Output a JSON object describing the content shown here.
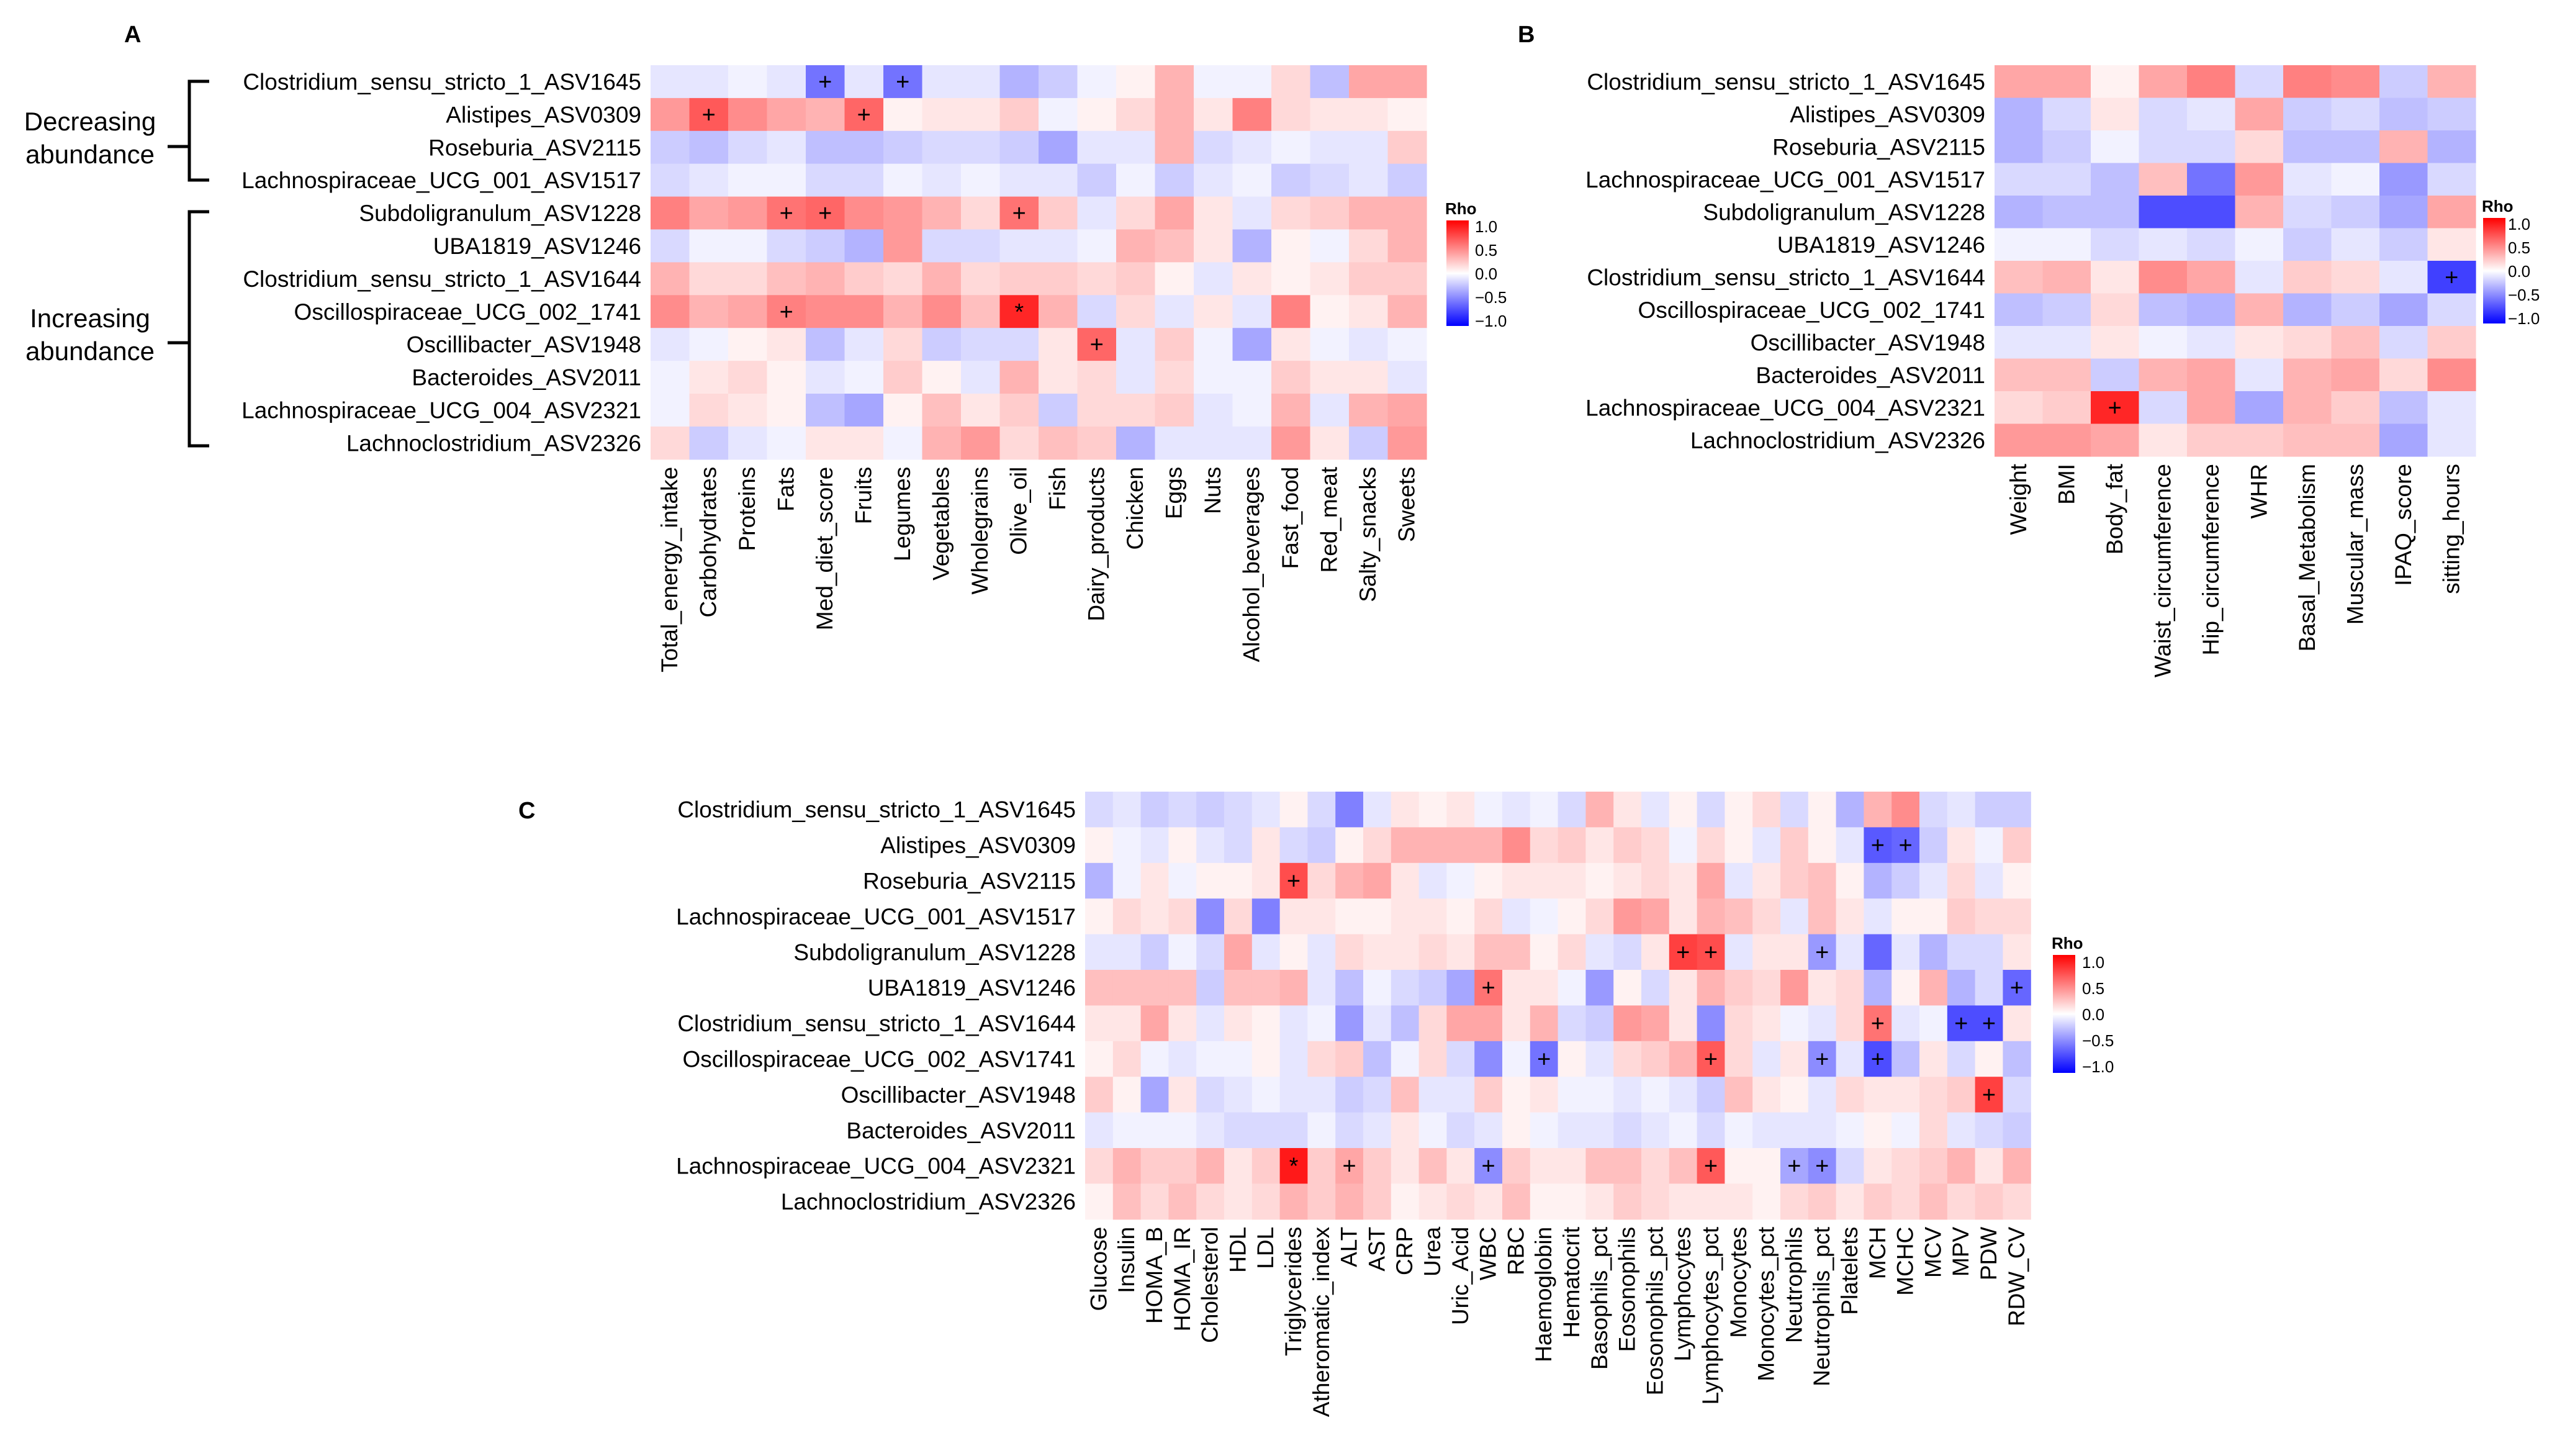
{
  "panels": {
    "A": {
      "letter": "A"
    },
    "B": {
      "letter": "B"
    },
    "C": {
      "letter": "C"
    }
  },
  "groups": {
    "decreasing": [
      "Decreasing",
      "abundance"
    ],
    "increasing": [
      "Increasing",
      "abundance"
    ]
  },
  "legend": {
    "title": "Rho",
    "ticks": [
      "1.0",
      "0.5",
      "0.0",
      "−0.5",
      "−1.0"
    ],
    "colors": {
      "high": "#ff0000",
      "mid": "#ffffff",
      "low": "#0000ff"
    }
  },
  "chart_data": [
    {
      "type": "heatmap",
      "panel": "A",
      "title": "",
      "value_range": [
        -1,
        1
      ],
      "rows": [
        "Clostridium_sensu_stricto_1_ASV1645",
        "Alistipes_ASV0309",
        "Roseburia_ASV2115",
        "Lachnospiraceae_UCG_001_ASV1517",
        "Subdoligranulum_ASV1228",
        "UBA1819_ASV1246",
        "Clostridium_sensu_stricto_1_ASV1644",
        "Oscillospiraceae_UCG_002_1741",
        "Oscillibacter_ASV1948",
        "Bacteroides_ASV2011",
        "Lachnospiraceae_UCG_004_ASV2321",
        "Lachnoclostridium_ASV2326"
      ],
      "columns": [
        "Total_energy_intake",
        "Carbohydrates",
        "Proteins",
        "Fats",
        "Med_diet_score",
        "Fruits",
        "Legumes",
        "Vegetables",
        "Wholegrains",
        "Olive_oil",
        "Fish",
        "Dairy_products",
        "Chicken",
        "Eggs",
        "Nuts",
        "Alcohol_beverages",
        "Fast_food",
        "Red_meat",
        "Salty_snacks",
        "Sweets"
      ],
      "values": [
        [
          -0.1,
          -0.1,
          -0.05,
          -0.1,
          -0.55,
          -0.1,
          -0.55,
          -0.1,
          -0.1,
          -0.3,
          -0.2,
          -0.05,
          0.05,
          0.3,
          -0.05,
          -0.05,
          0.15,
          -0.25,
          0.35,
          0.35
        ],
        [
          0.4,
          0.65,
          0.45,
          0.35,
          0.3,
          0.6,
          0.05,
          0.1,
          0.1,
          0.2,
          -0.05,
          0.05,
          0.15,
          0.3,
          0.1,
          0.5,
          0.15,
          0.1,
          0.1,
          0.05
        ],
        [
          -0.2,
          -0.25,
          -0.15,
          -0.1,
          -0.25,
          -0.25,
          -0.2,
          -0.15,
          -0.15,
          -0.2,
          -0.35,
          -0.1,
          -0.1,
          0.3,
          -0.15,
          -0.1,
          -0.05,
          -0.1,
          -0.1,
          0.2
        ],
        [
          -0.15,
          -0.1,
          -0.05,
          -0.05,
          -0.15,
          -0.15,
          -0.05,
          -0.1,
          -0.05,
          -0.1,
          -0.1,
          -0.2,
          -0.05,
          -0.2,
          -0.1,
          -0.05,
          -0.2,
          -0.15,
          -0.1,
          -0.2
        ],
        [
          0.5,
          0.35,
          0.4,
          0.55,
          0.6,
          0.45,
          0.4,
          0.3,
          0.15,
          0.55,
          0.2,
          -0.1,
          0.15,
          0.35,
          0.1,
          -0.1,
          0.15,
          0.2,
          0.3,
          0.3
        ],
        [
          -0.15,
          -0.05,
          -0.05,
          -0.15,
          -0.2,
          -0.3,
          0.4,
          -0.15,
          -0.15,
          -0.1,
          -0.1,
          -0.05,
          0.3,
          0.25,
          0.1,
          -0.3,
          0.05,
          -0.05,
          0.15,
          0.3
        ],
        [
          0.3,
          0.15,
          0.15,
          0.25,
          0.3,
          0.2,
          0.15,
          0.3,
          0.15,
          0.2,
          0.2,
          0.15,
          0.2,
          0.05,
          -0.1,
          0.1,
          0.05,
          0.1,
          0.2,
          0.2
        ],
        [
          0.45,
          0.3,
          0.35,
          0.5,
          0.45,
          0.45,
          0.3,
          0.45,
          0.25,
          0.85,
          0.3,
          -0.15,
          0.15,
          -0.1,
          0.1,
          -0.1,
          0.5,
          0.05,
          0.1,
          0.3
        ],
        [
          -0.1,
          -0.05,
          0.05,
          0.1,
          -0.25,
          -0.1,
          0.15,
          -0.2,
          -0.15,
          -0.15,
          0.1,
          0.6,
          -0.1,
          0.2,
          -0.05,
          -0.35,
          0.1,
          -0.05,
          -0.1,
          -0.05
        ],
        [
          -0.05,
          0.1,
          0.15,
          0.05,
          -0.1,
          -0.05,
          0.2,
          0.05,
          -0.1,
          0.3,
          0.1,
          0.15,
          -0.1,
          0.15,
          -0.05,
          -0.05,
          0.2,
          0.1,
          0.1,
          -0.1
        ],
        [
          -0.05,
          0.15,
          0.1,
          0.05,
          -0.25,
          -0.35,
          0.05,
          0.25,
          0.1,
          0.2,
          -0.2,
          0.15,
          0.15,
          0.2,
          -0.1,
          -0.05,
          0.3,
          -0.1,
          0.3,
          0.35
        ],
        [
          0.15,
          -0.2,
          -0.1,
          -0.05,
          0.1,
          0.1,
          -0.05,
          0.3,
          0.4,
          0.15,
          0.25,
          0.2,
          -0.3,
          -0.1,
          -0.1,
          -0.1,
          0.4,
          0.1,
          -0.2,
          0.4
        ]
      ],
      "marks": [
        {
          "row": 0,
          "col": 4,
          "symbol": "+"
        },
        {
          "row": 0,
          "col": 6,
          "symbol": "+"
        },
        {
          "row": 1,
          "col": 1,
          "symbol": "+"
        },
        {
          "row": 1,
          "col": 5,
          "symbol": "+"
        },
        {
          "row": 4,
          "col": 3,
          "symbol": "+"
        },
        {
          "row": 4,
          "col": 4,
          "symbol": "+"
        },
        {
          "row": 4,
          "col": 9,
          "symbol": "+"
        },
        {
          "row": 7,
          "col": 3,
          "symbol": "+"
        },
        {
          "row": 7,
          "col": 9,
          "symbol": "*"
        },
        {
          "row": 8,
          "col": 11,
          "symbol": "+"
        }
      ]
    },
    {
      "type": "heatmap",
      "panel": "B",
      "title": "",
      "value_range": [
        -1,
        1
      ],
      "rows": [
        "Clostridium_sensu_stricto_1_ASV1645",
        "Alistipes_ASV0309",
        "Roseburia_ASV2115",
        "Lachnospiraceae_UCG_001_ASV1517",
        "Subdoligranulum_ASV1228",
        "UBA1819_ASV1246",
        "Clostridium_sensu_stricto_1_ASV1644",
        "Oscillospiraceae_UCG_002_1741",
        "Oscillibacter_ASV1948",
        "Bacteroides_ASV2011",
        "Lachnospiraceae_UCG_004_ASV2321",
        "Lachnoclostridium_ASV2326"
      ],
      "columns": [
        "Weight",
        "BMI",
        "Body_fat",
        "Waist_circumference",
        "Hip_circumference",
        "WHR",
        "Basal_Metabolism",
        "Muscular_mass",
        "IPAQ_score",
        "sitting_hours"
      ],
      "values": [
        [
          0.35,
          0.35,
          0.05,
          0.35,
          0.5,
          -0.15,
          0.5,
          0.45,
          -0.2,
          0.3
        ],
        [
          -0.3,
          -0.15,
          0.1,
          -0.15,
          -0.1,
          0.35,
          -0.2,
          -0.15,
          -0.25,
          -0.2
        ],
        [
          -0.3,
          -0.2,
          -0.05,
          -0.15,
          -0.15,
          0.15,
          -0.25,
          -0.25,
          0.3,
          -0.3
        ],
        [
          -0.15,
          -0.15,
          -0.25,
          0.25,
          -0.55,
          0.4,
          -0.1,
          -0.05,
          -0.4,
          -0.15
        ],
        [
          -0.3,
          -0.25,
          -0.25,
          -0.7,
          -0.7,
          0.3,
          -0.15,
          -0.2,
          -0.35,
          0.35
        ],
        [
          -0.05,
          -0.05,
          -0.15,
          -0.1,
          -0.15,
          -0.05,
          -0.2,
          -0.1,
          -0.2,
          0.1
        ],
        [
          0.25,
          0.3,
          0.1,
          0.45,
          0.35,
          -0.1,
          0.2,
          0.15,
          -0.1,
          -0.75
        ],
        [
          -0.25,
          -0.2,
          0.15,
          -0.25,
          -0.3,
          0.3,
          -0.3,
          -0.2,
          -0.35,
          -0.15
        ],
        [
          -0.1,
          -0.1,
          0.1,
          -0.05,
          -0.1,
          0.1,
          0.15,
          0.25,
          -0.15,
          0.2
        ],
        [
          0.25,
          0.25,
          -0.2,
          0.3,
          0.35,
          -0.1,
          0.3,
          0.35,
          0.15,
          0.45
        ],
        [
          0.15,
          0.2,
          0.85,
          -0.15,
          0.35,
          -0.35,
          0.3,
          0.2,
          -0.25,
          -0.1
        ],
        [
          0.4,
          0.4,
          0.35,
          0.1,
          0.2,
          0.2,
          0.25,
          0.25,
          -0.35,
          -0.1
        ]
      ],
      "marks": [
        {
          "row": 6,
          "col": 9,
          "symbol": "+"
        },
        {
          "row": 10,
          "col": 2,
          "symbol": "+"
        }
      ]
    },
    {
      "type": "heatmap",
      "panel": "C",
      "title": "",
      "value_range": [
        -1,
        1
      ],
      "rows": [
        "Clostridium_sensu_stricto_1_ASV1645",
        "Alistipes_ASV0309",
        "Roseburia_ASV2115",
        "Lachnospiraceae_UCG_001_ASV1517",
        "Subdoligranulum_ASV1228",
        "UBA1819_ASV1246",
        "Clostridium_sensu_stricto_1_ASV1644",
        "Oscillospiraceae_UCG_002_ASV1741",
        "Oscillibacter_ASV1948",
        "Bacteroides_ASV2011",
        "Lachnospiraceae_UCG_004_ASV2321",
        "Lachnoclostridium_ASV2326"
      ],
      "columns": [
        "Glucose",
        "Insulin",
        "HOMA_B",
        "HOMA_IR",
        "Cholesterol",
        "HDL",
        "LDL",
        "Triglycerides",
        "Atheromatic_index",
        "ALT",
        "AST",
        "CRP",
        "Urea",
        "Uric_Acid",
        "WBC",
        "RBC",
        "Haemoglobin",
        "Hematocrit",
        "Basophils_pct",
        "Eosonophils",
        "Eosonophils_pct",
        "Lymphocytes",
        "Lymphocytes_pct",
        "Monocytes",
        "Monocytes_pct",
        "Neutrophils",
        "Neutrophils_pct",
        "Platelets",
        "MCH",
        "MCHC",
        "MCV",
        "MPV",
        "PDW",
        "RDW_CV"
      ],
      "values": [
        [
          -0.15,
          -0.1,
          -0.2,
          -0.15,
          -0.2,
          -0.15,
          -0.1,
          0.05,
          -0.15,
          -0.5,
          -0.1,
          0.1,
          0.05,
          0.1,
          -0.05,
          -0.1,
          -0.05,
          -0.15,
          0.3,
          0.1,
          -0.1,
          0.05,
          -0.15,
          0.05,
          0.15,
          -0.15,
          0.05,
          -0.3,
          0.3,
          0.45,
          -0.15,
          -0.1,
          -0.2,
          -0.2
        ],
        [
          0.05,
          -0.05,
          -0.1,
          0.05,
          -0.1,
          -0.15,
          0.1,
          -0.15,
          -0.2,
          0.05,
          0.15,
          0.3,
          0.3,
          0.3,
          0.3,
          0.45,
          0.15,
          0.2,
          0.1,
          0.2,
          0.15,
          -0.05,
          0.15,
          0.05,
          -0.1,
          0.2,
          0.05,
          -0.1,
          -0.65,
          -0.6,
          -0.2,
          0.1,
          -0.05,
          0.2
        ],
        [
          -0.3,
          -0.05,
          0.1,
          -0.05,
          0.05,
          0.05,
          0.1,
          0.7,
          0.15,
          0.3,
          0.35,
          0.1,
          -0.1,
          -0.05,
          0.05,
          0.1,
          0.1,
          0.1,
          0.05,
          0.1,
          0.15,
          0.1,
          0.35,
          -0.1,
          0.1,
          0.2,
          0.25,
          0.05,
          -0.3,
          -0.2,
          -0.1,
          0.15,
          -0.1,
          0.05
        ],
        [
          0.05,
          0.15,
          0.1,
          0.15,
          -0.45,
          0.15,
          -0.5,
          0.1,
          0.1,
          0.05,
          0.05,
          0.1,
          0.1,
          0.05,
          0.15,
          -0.1,
          -0.05,
          0.05,
          0.15,
          0.4,
          0.35,
          0.1,
          0.3,
          0.25,
          0.15,
          -0.1,
          0.25,
          0.1,
          -0.1,
          0.05,
          0.05,
          0.2,
          0.15,
          0.15
        ],
        [
          -0.1,
          -0.1,
          -0.2,
          -0.05,
          -0.15,
          0.35,
          -0.1,
          0.05,
          -0.1,
          0.15,
          0.1,
          0.1,
          0.15,
          0.1,
          0.25,
          0.25,
          0.05,
          0.15,
          -0.1,
          -0.15,
          0.1,
          0.75,
          0.7,
          -0.1,
          0.1,
          0.1,
          -0.4,
          -0.1,
          -0.6,
          -0.1,
          -0.3,
          -0.15,
          -0.15,
          0.1
        ],
        [
          0.25,
          0.25,
          0.25,
          0.25,
          -0.2,
          0.25,
          0.25,
          0.3,
          -0.1,
          -0.25,
          -0.05,
          -0.15,
          -0.2,
          -0.35,
          0.55,
          0.1,
          0.1,
          -0.05,
          -0.4,
          0.05,
          -0.15,
          0.1,
          0.3,
          0.2,
          0.15,
          0.4,
          0.1,
          0.15,
          -0.3,
          0.05,
          0.3,
          -0.3,
          -0.15,
          -0.6
        ],
        [
          0.1,
          0.1,
          0.35,
          0.1,
          -0.1,
          0.1,
          0.05,
          -0.1,
          -0.05,
          -0.4,
          -0.1,
          -0.25,
          0.15,
          0.35,
          0.35,
          0.1,
          0.3,
          -0.15,
          -0.2,
          0.4,
          0.35,
          0.1,
          -0.45,
          0.15,
          0.1,
          -0.05,
          -0.1,
          0.15,
          0.55,
          -0.1,
          -0.05,
          -0.7,
          -0.7,
          0.1
        ],
        [
          0.05,
          0.15,
          -0.05,
          -0.1,
          -0.05,
          -0.05,
          0.05,
          -0.1,
          0.15,
          0.2,
          -0.25,
          -0.05,
          0.15,
          -0.15,
          -0.45,
          -0.05,
          -0.55,
          0.05,
          -0.1,
          0.15,
          0.2,
          0.3,
          0.65,
          0.15,
          -0.1,
          0.1,
          -0.45,
          -0.1,
          -0.7,
          -0.25,
          0.1,
          -0.15,
          0.05,
          -0.25
        ],
        [
          0.2,
          0.05,
          -0.35,
          0.1,
          -0.15,
          -0.1,
          -0.05,
          -0.1,
          -0.1,
          -0.2,
          -0.15,
          0.25,
          -0.1,
          -0.1,
          0.2,
          0.05,
          0.1,
          -0.05,
          -0.05,
          -0.1,
          -0.05,
          -0.1,
          -0.2,
          0.25,
          0.1,
          0.05,
          -0.1,
          0.15,
          0.1,
          0.1,
          0.15,
          0.2,
          0.75,
          -0.15
        ],
        [
          -0.1,
          -0.05,
          -0.05,
          -0.05,
          -0.1,
          -0.15,
          -0.15,
          -0.15,
          -0.05,
          -0.15,
          -0.1,
          0.1,
          -0.05,
          -0.15,
          -0.1,
          0.05,
          -0.05,
          -0.1,
          -0.1,
          -0.15,
          -0.1,
          -0.05,
          -0.15,
          -0.05,
          -0.1,
          -0.1,
          -0.1,
          -0.05,
          0.05,
          -0.05,
          0.15,
          -0.1,
          -0.15,
          -0.2
        ],
        [
          0.15,
          0.3,
          0.2,
          0.2,
          0.3,
          0.1,
          0.2,
          0.9,
          0.2,
          0.35,
          0.2,
          0.1,
          0.25,
          0.1,
          -0.45,
          0.2,
          0.1,
          0.1,
          0.25,
          0.25,
          0.15,
          0.25,
          0.65,
          0.05,
          0.05,
          -0.35,
          -0.45,
          -0.15,
          0.1,
          0.15,
          0.2,
          0.3,
          0.1,
          0.3
        ],
        [
          0.05,
          0.25,
          0.15,
          0.25,
          0.15,
          0.1,
          0.15,
          0.3,
          0.2,
          0.3,
          0.2,
          0.05,
          0.1,
          0.15,
          0.1,
          0.25,
          0.05,
          0.05,
          0.1,
          0.2,
          0.15,
          0.1,
          0.1,
          0.1,
          0.05,
          0.15,
          0.2,
          0.1,
          0.2,
          0.15,
          0.25,
          0.15,
          0.2,
          0.15
        ]
      ],
      "marks": [
        {
          "row": 1,
          "col": 28,
          "symbol": "+"
        },
        {
          "row": 1,
          "col": 29,
          "symbol": "+"
        },
        {
          "row": 2,
          "col": 7,
          "symbol": "+"
        },
        {
          "row": 4,
          "col": 21,
          "symbol": "+"
        },
        {
          "row": 4,
          "col": 22,
          "symbol": "+"
        },
        {
          "row": 4,
          "col": 26,
          "symbol": "+"
        },
        {
          "row": 5,
          "col": 14,
          "symbol": "+"
        },
        {
          "row": 5,
          "col": 33,
          "symbol": "+"
        },
        {
          "row": 6,
          "col": 28,
          "symbol": "+"
        },
        {
          "row": 6,
          "col": 31,
          "symbol": "+"
        },
        {
          "row": 6,
          "col": 32,
          "symbol": "+"
        },
        {
          "row": 7,
          "col": 16,
          "symbol": "+"
        },
        {
          "row": 7,
          "col": 22,
          "symbol": "+"
        },
        {
          "row": 7,
          "col": 26,
          "symbol": "+"
        },
        {
          "row": 7,
          "col": 28,
          "symbol": "+"
        },
        {
          "row": 8,
          "col": 32,
          "symbol": "+"
        },
        {
          "row": 10,
          "col": 7,
          "symbol": "*"
        },
        {
          "row": 10,
          "col": 9,
          "symbol": "+"
        },
        {
          "row": 10,
          "col": 14,
          "symbol": "+"
        },
        {
          "row": 10,
          "col": 22,
          "symbol": "+"
        },
        {
          "row": 10,
          "col": 25,
          "symbol": "+"
        },
        {
          "row": 10,
          "col": 26,
          "symbol": "+"
        }
      ]
    }
  ]
}
